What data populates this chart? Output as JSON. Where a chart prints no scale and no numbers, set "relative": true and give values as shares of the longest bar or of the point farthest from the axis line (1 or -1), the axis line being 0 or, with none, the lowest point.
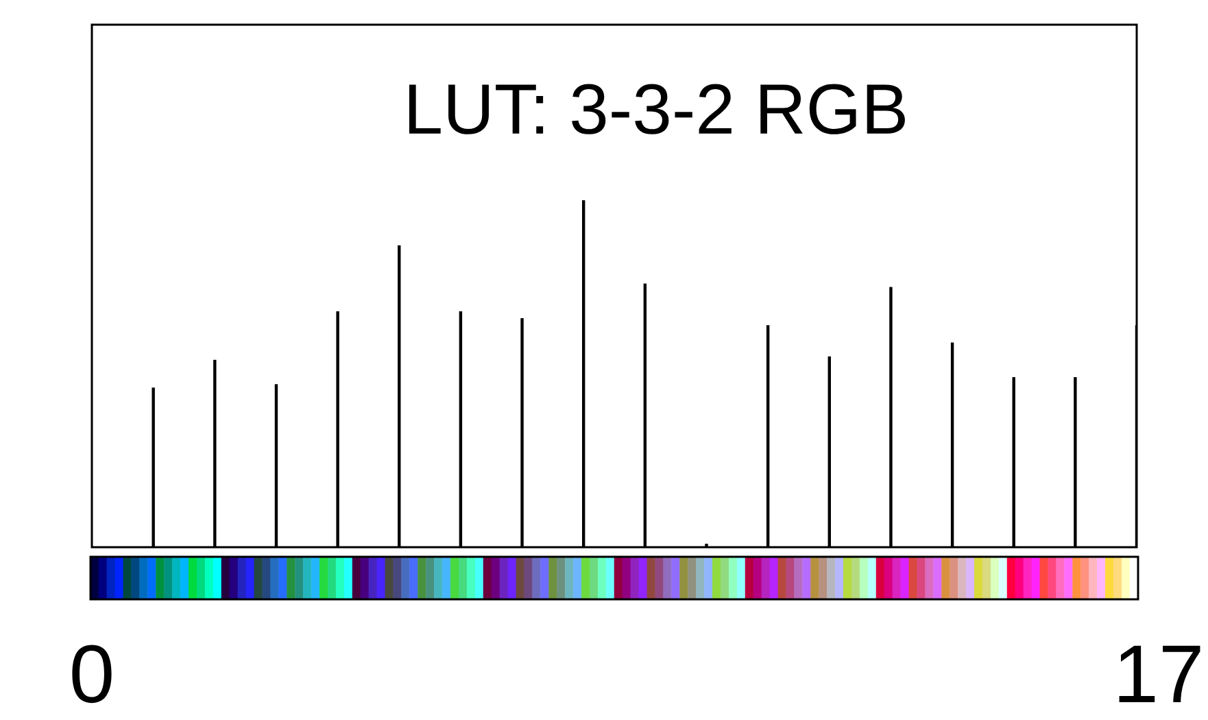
{
  "chart_data": {
    "type": "bar",
    "title": "LUT: 3-3-2 RGB",
    "categories": [
      null,
      null,
      null,
      null,
      null,
      null,
      null,
      null,
      null,
      null,
      null,
      null,
      null,
      null,
      null,
      null,
      null
    ],
    "values": [
      0.46,
      0.54,
      0.47,
      0.68,
      0.87,
      0.68,
      0.66,
      1,
      0.76,
      0.01,
      0.64,
      0.55,
      0.75,
      0.59,
      0.49,
      0.49,
      0.64
    ],
    "relative": true,
    "color": "#000000",
    "annotations": [
      "0",
      "17"
    ]
  }
}
